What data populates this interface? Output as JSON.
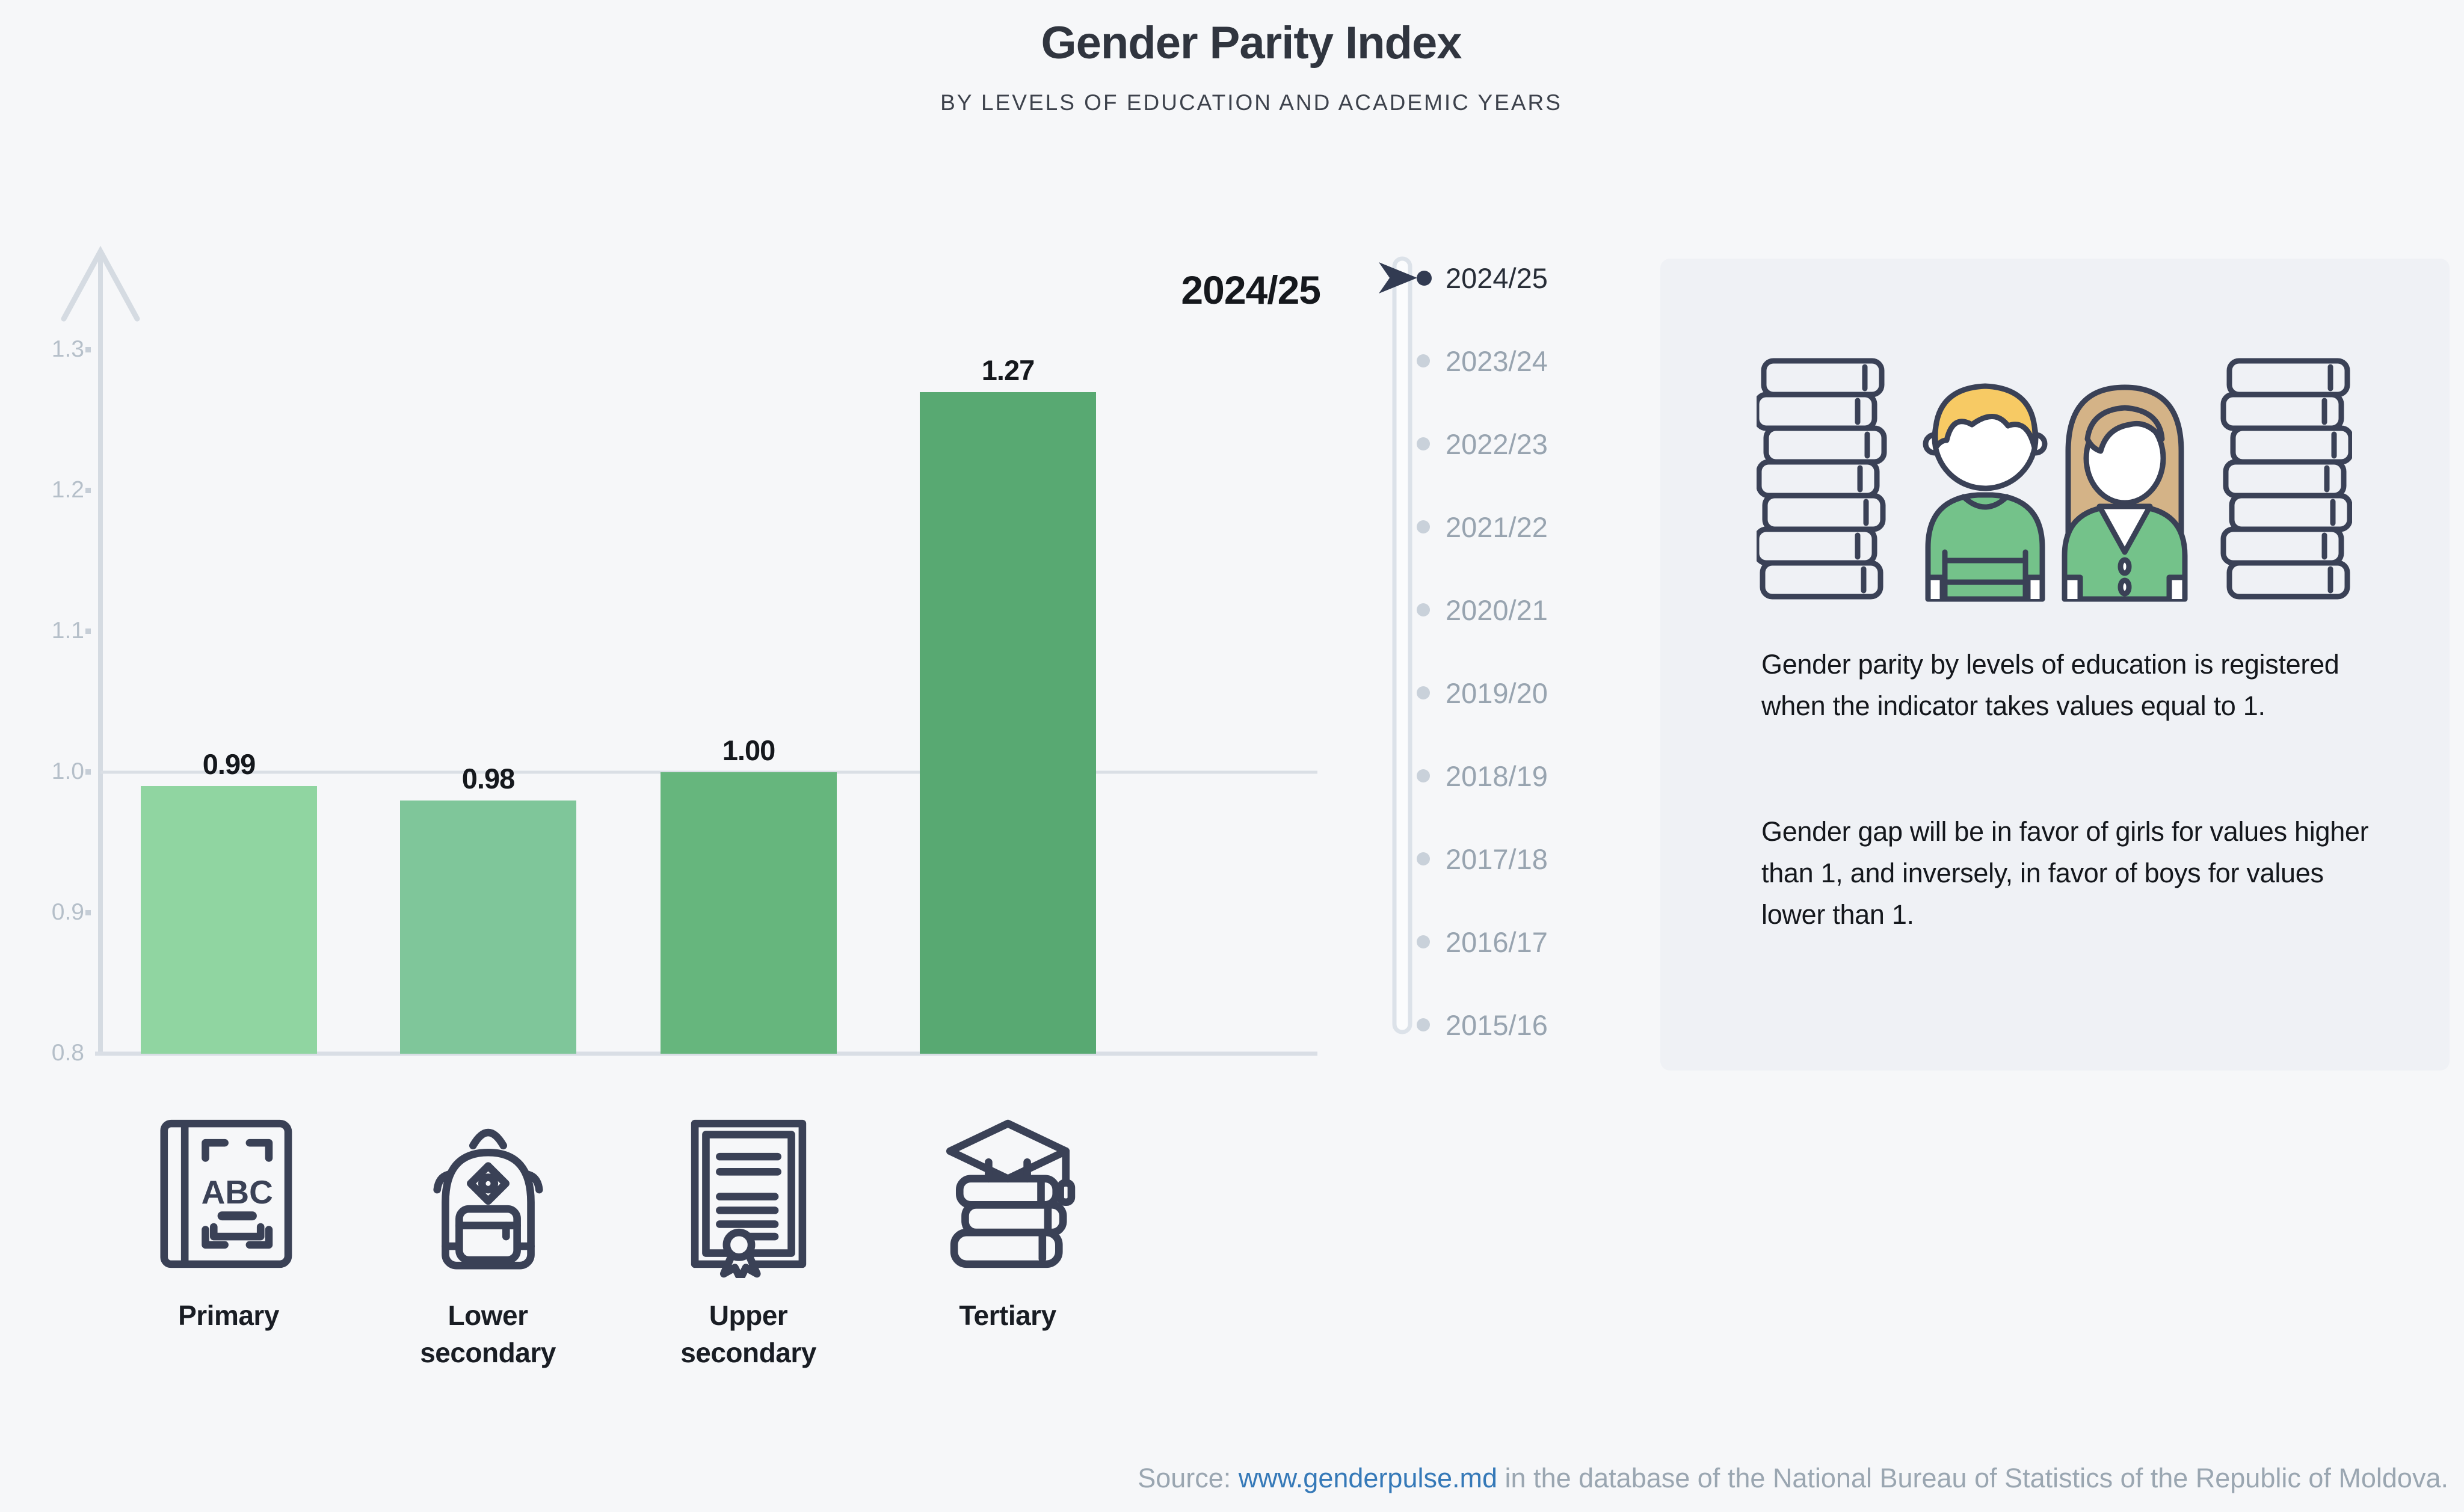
{
  "title": "Gender Parity Index",
  "subtitle": "BY LEVELS OF EDUCATION AND ACADEMIC YEARS",
  "chart_data": {
    "type": "bar",
    "title": "Gender Parity Index by levels of education, 2024/25",
    "categories": [
      "Primary",
      "Lower secondary",
      "Upper secondary",
      "Tertiary"
    ],
    "values": [
      0.99,
      0.98,
      1.0,
      1.27
    ],
    "value_labels": [
      "0.99",
      "0.98",
      "1.00",
      "1.27"
    ],
    "bar_colors": [
      "#90d5a1",
      "#7fc69a",
      "#66b67d",
      "#58a972"
    ],
    "category_icons": [
      "abc-book",
      "backpack",
      "diploma",
      "books-graduation-cap"
    ],
    "xlabel": "",
    "ylabel": "",
    "ylim": [
      0.8,
      1.38
    ],
    "yticks": [
      0.8,
      0.9,
      1.0,
      1.1,
      1.2,
      1.3
    ],
    "gridline_at": 1.0,
    "grid": "only at 1.0",
    "legend_position": "none",
    "selected_year": "2024/25"
  },
  "timeline": {
    "selected": "2024/25",
    "years": [
      "2024/25",
      "2023/24",
      "2022/23",
      "2021/22",
      "2020/21",
      "2019/20",
      "2018/19",
      "2017/18",
      "2016/17",
      "2015/16"
    ]
  },
  "panel": {
    "paragraph1": "Gender parity by levels of education is registered when the indicator takes values equal to 1.",
    "paragraph2": "Gender gap will be in favor of girls for values higher than 1, and inversely, in favor of boys for values lower than 1."
  },
  "source": {
    "prefix": "Source: ",
    "link": "www.genderpulse.md",
    "suffix": " in the database of the National Bureau of Statistics of the Republic of Moldova."
  },
  "colors": {
    "page_bg": "#f6f7f9",
    "panel_bg": "#eff1f5",
    "axis": "#d5dbe2",
    "tick_text": "#b5bfc9",
    "inactive_year": "#98a4b0",
    "selected_year": "#272d37",
    "marker_navy": "#323b52",
    "outline_navy": "#3a4156",
    "link_blue": "#3579b8",
    "source_gray": "#9aa6b1",
    "boy_hair": "#f7ca64",
    "girl_hair": "#d4b387",
    "sweater_green": "#74c28a"
  }
}
